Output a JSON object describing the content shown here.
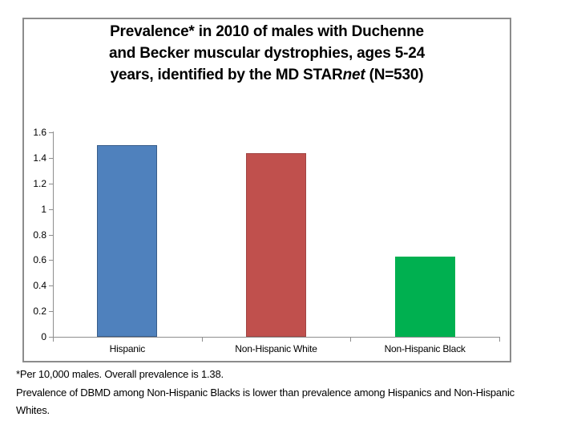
{
  "title": {
    "line1": "Prevalence* in 2010 of males with Duchenne",
    "line2": "and Becker muscular dystrophies, ages 5-24",
    "line3_prefix": "years, identified by the MD STAR",
    "line3_italic": "net",
    "line3_suffix": " (N=530)"
  },
  "chart_data": {
    "type": "bar",
    "title": "Prevalence* in 2010 of males with Duchenne and Becker muscular dystrophies, ages 5-24 years, identified by the MD STARnet (N=530)",
    "categories": [
      "Hispanic",
      "Non-Hispanic White",
      "Non-Hispanic Black"
    ],
    "values": [
      1.5,
      1.44,
      0.63
    ],
    "bar_colors": [
      "#4F81BD",
      "#C0504D",
      "#00B050"
    ],
    "bar_border_colors": [
      "#385D8A",
      "#A04543",
      "#00B050"
    ],
    "xlabel": "",
    "ylabel": "",
    "ylim": [
      0,
      1.6
    ],
    "yticks": [
      0,
      0.2,
      0.4,
      0.6,
      0.8,
      1,
      1.2,
      1.4,
      1.6
    ],
    "ytick_labels": [
      "0",
      "0.2",
      "0.4",
      "0.6",
      "0.8",
      "1",
      "1.2",
      "1.4",
      "1.6"
    ],
    "grid": false,
    "legend": false,
    "axis_color": "#8E8E8E",
    "frame_color": "#8C8C8C"
  },
  "footnotes": {
    "line1": "*Per 10,000 males. Overall prevalence is 1.38.",
    "line2": "Prevalence of DBMD among Non-Hispanic Blacks is lower than prevalence among Hispanics and Non-Hispanic",
    "line3": "Whites."
  }
}
